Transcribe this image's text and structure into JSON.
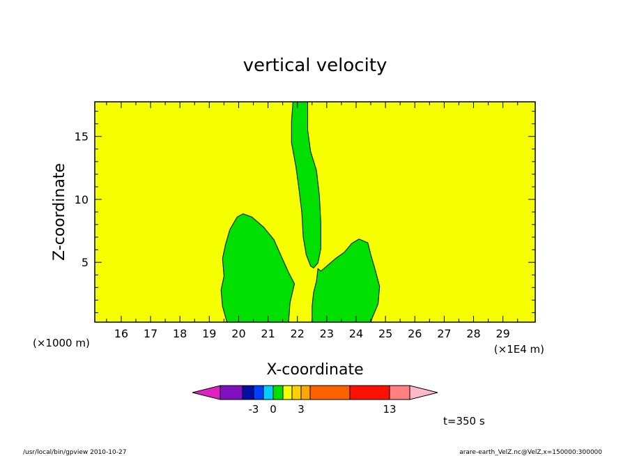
{
  "chart_data": {
    "type": "contour",
    "title": "vertical velocity",
    "xlabel": "X-coordinate",
    "ylabel": "Z-coordinate",
    "x_units_label": "(×1E4 m)",
    "y_units_label": "(×1000 m)",
    "xlim": [
      15.1,
      30.1
    ],
    "ylim": [
      0.25,
      17.75
    ],
    "x_ticks": [
      16,
      17,
      18,
      19,
      20,
      21,
      22,
      23,
      24,
      25,
      26,
      27,
      28,
      29
    ],
    "y_ticks": [
      5,
      10,
      15
    ],
    "background_level_color": "#f5ff00",
    "background_range": "0 to 1",
    "contour_regions": [
      {
        "name": "left-updraft-region",
        "level_range": "-1 to 0",
        "color": "#00e000",
        "points": [
          [
            19.6,
            0.25
          ],
          [
            19.45,
            1.5
          ],
          [
            19.4,
            2.8
          ],
          [
            19.5,
            3.9
          ],
          [
            19.45,
            5.3
          ],
          [
            19.55,
            6.4
          ],
          [
            19.7,
            7.6
          ],
          [
            19.95,
            8.6
          ],
          [
            20.15,
            8.85
          ],
          [
            20.45,
            8.6
          ],
          [
            20.85,
            7.8
          ],
          [
            21.2,
            6.8
          ],
          [
            21.45,
            5.5
          ],
          [
            21.7,
            4.2
          ],
          [
            21.9,
            3.3
          ],
          [
            21.75,
            1.8
          ],
          [
            21.7,
            0.25
          ]
        ]
      },
      {
        "name": "upper-column-region",
        "level_range": "-1 to 0",
        "color": "#00e000",
        "points": [
          [
            21.85,
            17.75
          ],
          [
            21.8,
            16.2
          ],
          [
            21.8,
            14.5
          ],
          [
            21.95,
            12.6
          ],
          [
            22.05,
            10.9
          ],
          [
            22.15,
            9.0
          ],
          [
            22.2,
            7.0
          ],
          [
            22.3,
            5.6
          ],
          [
            22.45,
            4.7
          ],
          [
            22.55,
            4.55
          ],
          [
            22.7,
            4.95
          ],
          [
            22.8,
            6.1
          ],
          [
            22.8,
            8.1
          ],
          [
            22.75,
            10.3
          ],
          [
            22.65,
            12.3
          ],
          [
            22.45,
            13.8
          ],
          [
            22.35,
            15.5
          ],
          [
            22.35,
            17.75
          ]
        ]
      },
      {
        "name": "right-updraft-region",
        "level_range": "-1 to 0",
        "color": "#00e000",
        "points": [
          [
            22.5,
            0.25
          ],
          [
            22.5,
            1.5
          ],
          [
            22.55,
            2.6
          ],
          [
            22.65,
            3.5
          ],
          [
            22.7,
            4.5
          ],
          [
            22.8,
            4.3
          ],
          [
            23.0,
            4.7
          ],
          [
            23.3,
            5.3
          ],
          [
            23.6,
            5.8
          ],
          [
            23.85,
            6.5
          ],
          [
            24.1,
            6.85
          ],
          [
            24.4,
            6.55
          ],
          [
            24.5,
            5.6
          ],
          [
            24.65,
            4.4
          ],
          [
            24.8,
            3.1
          ],
          [
            24.75,
            1.7
          ],
          [
            24.55,
            0.6
          ],
          [
            24.5,
            0.25
          ]
        ]
      }
    ],
    "colorbar": {
      "colors": [
        "#e020c0",
        "#8010c0",
        "#0010a0",
        "#0040ff",
        "#00d0ff",
        "#00e000",
        "#f5ff00",
        "#ffd000",
        "#ffa800",
        "#ff6000",
        "#ff1000",
        "#ff8080",
        "#ffb8c8"
      ],
      "tick_labels": [
        {
          "after_segment": 3,
          "label": "-3"
        },
        {
          "after_segment": 5,
          "label": "0"
        },
        {
          "after_segment": 8,
          "label": "3"
        },
        {
          "after_segment": 11,
          "label": "13"
        }
      ]
    },
    "time_label": "t=350 s"
  },
  "footer": {
    "left": "/usr/local/bin/gpview   2010-10-27",
    "right": "arare-earth_VelZ.nc@VelZ,x=150000:300000"
  }
}
